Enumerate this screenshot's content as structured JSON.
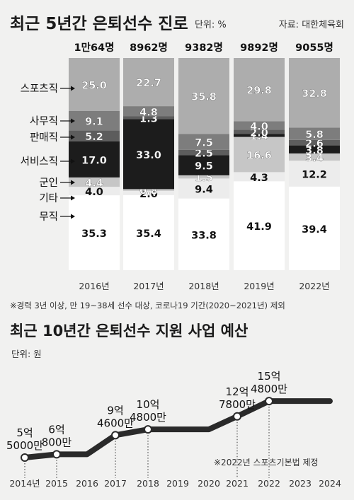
{
  "chart_data": [
    {
      "type": "bar",
      "stacked": true,
      "title": "최근 5년간 은퇴선수 진로",
      "unit": "단위: %",
      "source": "자료: 대한체육회",
      "note": "※경력 3년 이상, 만 19~38세 선수 대상, 코로나19 기간(2020~2021년) 제외",
      "categories": [
        "2016년",
        "2017년",
        "2018년",
        "2019년",
        "2022년"
      ],
      "category_labels": [
        "2016년",
        "2017년",
        "2018년",
        "2019년",
        "2022년"
      ],
      "totals": [
        "1만64명",
        "8962명",
        "9382명",
        "9892명",
        "9055명"
      ],
      "ylim": [
        0,
        100
      ],
      "series": [
        {
          "name": "무직",
          "values": [
            35.3,
            35.4,
            33.8,
            41.9,
            39.4
          ],
          "labels": [
            "35.3",
            "35.4",
            "33.8",
            "41.9",
            "39.4"
          ],
          "color": "#ffffff",
          "text": "#111111"
        },
        {
          "name": "기타",
          "values": [
            4.0,
            2.0,
            9.4,
            4.3,
            12.2
          ],
          "labels": [
            "4.0",
            "2.0",
            "9.4",
            "4.3",
            "12.2"
          ],
          "color": "#ececec",
          "text": "#111111"
        },
        {
          "name": "군인",
          "values": [
            4.4,
            0.8,
            1.5,
            16.6,
            3.4
          ],
          "labels": [
            "4.4",
            "0.8",
            "1.5",
            "16.6",
            "3.4"
          ],
          "color": "#c6c6c6",
          "text": "#ffffff"
        },
        {
          "name": "서비스직",
          "values": [
            17.0,
            33.0,
            9.5,
            1.4,
            3.8
          ],
          "labels": [
            "17.0",
            "33.0",
            "9.5",
            "1.4",
            "3.8"
          ],
          "color": "#1c1c1c",
          "text": "#ffffff"
        },
        {
          "name": "판매직",
          "values": [
            5.2,
            1.3,
            2.5,
            2.0,
            2.6
          ],
          "labels": [
            "5.2",
            "1.3",
            "2.5",
            "2.0",
            "2.6"
          ],
          "color": "#5d5d5d",
          "text": "#ffffff"
        },
        {
          "name": "사무직",
          "values": [
            9.1,
            4.8,
            7.5,
            4.0,
            5.8
          ],
          "labels": [
            "9.1",
            "4.8",
            "7.5",
            "4.0",
            "5.8"
          ],
          "color": "#7d7d7d",
          "text": "#ffffff"
        },
        {
          "name": "스포츠직",
          "values": [
            25.0,
            22.7,
            35.8,
            29.8,
            32.8
          ],
          "labels": [
            "25.0",
            "22.7",
            "35.8",
            "29.8",
            "32.8"
          ],
          "color": "#adadad",
          "text": "#ffffff"
        }
      ]
    },
    {
      "type": "line",
      "title": "최근 10년간 은퇴선수 지원 사업 예산",
      "unit": "단위: 원",
      "note": "※2022년 스포츠기본법 제정",
      "x": [
        "2014년",
        "2015",
        "2016",
        "2017",
        "2018",
        "2019",
        "2020",
        "2021",
        "2022",
        "2023",
        "2024"
      ],
      "values": [
        5.5,
        6.08,
        6.08,
        9.46,
        10.48,
        10.48,
        10.48,
        12.78,
        15.48,
        15.48,
        15.48
      ],
      "point_labels": [
        {
          "index": 0,
          "lines": [
            "5억",
            "5000만"
          ]
        },
        {
          "index": 1,
          "lines": [
            "6억",
            "800만"
          ]
        },
        {
          "index": 3,
          "lines": [
            "9억",
            "4600만"
          ]
        },
        {
          "index": 4,
          "lines": [
            "10억",
            "4800만"
          ]
        },
        {
          "index": 7,
          "lines": [
            "12억",
            "7800만"
          ]
        },
        {
          "index": 8,
          "lines": [
            "15억",
            "4800만"
          ]
        }
      ]
    }
  ]
}
